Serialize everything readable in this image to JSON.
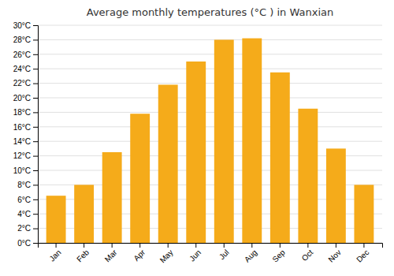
{
  "chart_data": {
    "type": "bar",
    "title": "Average monthly temperatures (°C ) in Wanxian",
    "categories": [
      "Jan",
      "Feb",
      "Mar",
      "Apr",
      "May",
      "Jun",
      "Jul",
      "Aug",
      "Sep",
      "Oct",
      "Nov",
      "Dec"
    ],
    "values": [
      6.5,
      8.0,
      12.5,
      17.8,
      21.8,
      25.0,
      28.0,
      28.2,
      23.5,
      18.5,
      13.0,
      8.0
    ],
    "color": "#F5AB1A",
    "ylim": [
      0,
      30
    ],
    "yticks": [
      {
        "value": 0,
        "label": "0°C"
      },
      {
        "value": 2,
        "label": "2°C"
      },
      {
        "value": 4,
        "label": "4°C"
      },
      {
        "value": 6,
        "label": "6°C"
      },
      {
        "value": 8,
        "label": "8°C"
      },
      {
        "value": 10,
        "label": "10°C"
      },
      {
        "value": 12,
        "label": "12°C"
      },
      {
        "value": 14,
        "label": "14°C"
      },
      {
        "value": 16,
        "label": "16°C"
      },
      {
        "value": 18,
        "label": "18°C"
      },
      {
        "value": 20,
        "label": "20°C"
      },
      {
        "value": 22,
        "label": "22°C"
      },
      {
        "value": 24,
        "label": "24°C"
      },
      {
        "value": 26,
        "label": "26°C"
      },
      {
        "value": 28,
        "label": "28°C"
      },
      {
        "value": 30,
        "label": "30°C"
      }
    ],
    "grid": true
  }
}
